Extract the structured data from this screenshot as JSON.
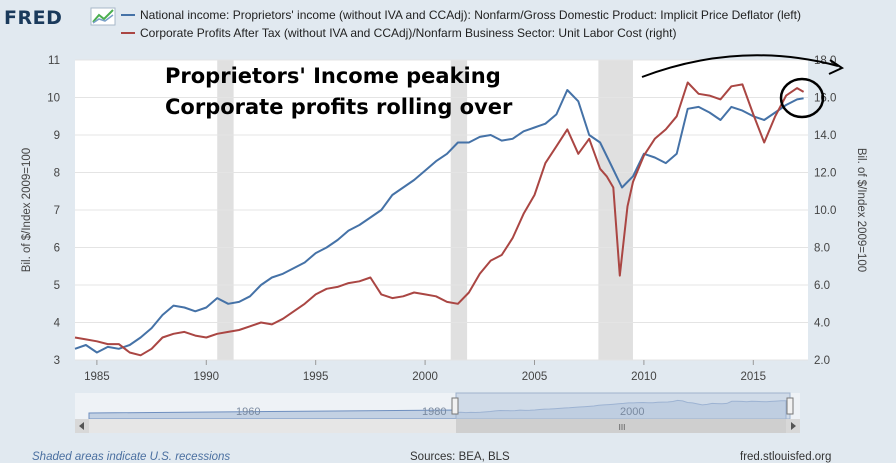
{
  "header": {
    "logo_text": "FRED",
    "logo_icon": "chart-line-icon"
  },
  "legend": {
    "items": [
      {
        "label": "National income: Proprietors' income (without IVA and CCAdj): Nonfarm/Gross Domestic Product: Implicit Price Deflator (left)",
        "color": "#4572a7"
      },
      {
        "label": "Corporate Profits After Tax (without IVA and CCAdj)/Nonfarm Business Sector: Unit Labor Cost (right)",
        "color": "#aa4643"
      }
    ]
  },
  "annotation": {
    "line1": "Proprietors' Income peaking",
    "line2": "Corporate profits rolling over"
  },
  "footer": {
    "recession_note": "Shaded areas indicate U.S. recessions",
    "sources": "Sources: BEA, BLS",
    "site": "fred.stlouisfed.org"
  },
  "navigator": {
    "ticks": [
      "1960",
      "1980",
      "2000"
    ],
    "scrollbar_grip": "III"
  },
  "chart_data": {
    "type": "line",
    "title": "",
    "xlabel": "",
    "xlim": [
      1984.0,
      2017.5
    ],
    "x_ticks": [
      1985,
      1990,
      1995,
      2000,
      2005,
      2010,
      2015
    ],
    "x_tick_labels": [
      "1985",
      "1990",
      "1995",
      "2000",
      "2005",
      "2010",
      "2015"
    ],
    "y_left": {
      "label": "Bil. of $/Index 2009=100",
      "range": [
        3,
        11
      ],
      "ticks": [
        3,
        4,
        5,
        6,
        7,
        8,
        9,
        10,
        11
      ],
      "tick_labels": [
        "3",
        "4",
        "5",
        "6",
        "7",
        "8",
        "9",
        "10",
        "11"
      ]
    },
    "y_right": {
      "label": "Bil. of $/Index 2009=100",
      "range": [
        2.0,
        18.0
      ],
      "ticks": [
        2,
        4,
        6,
        8,
        10,
        12,
        14,
        16,
        18
      ],
      "tick_labels": [
        "2.0",
        "4.0",
        "6.0",
        "8.0",
        "10.0",
        "12.0",
        "14.0",
        "16.0",
        "18.0"
      ]
    },
    "recessions": [
      [
        1990.5,
        1991.25
      ],
      [
        2001.17,
        2001.92
      ],
      [
        2007.92,
        2009.5
      ]
    ],
    "grid": true,
    "series": [
      {
        "name": "National income: Proprietors' income / GDP deflator",
        "axis": "left",
        "color": "#4572a7",
        "x": [
          1984.0,
          1984.5,
          1985.0,
          1985.5,
          1986.0,
          1986.5,
          1987.0,
          1987.5,
          1988.0,
          1988.5,
          1989.0,
          1989.5,
          1990.0,
          1990.5,
          1991.0,
          1991.5,
          1992.0,
          1992.5,
          1993.0,
          1993.5,
          1994.0,
          1994.5,
          1995.0,
          1995.5,
          1996.0,
          1996.5,
          1997.0,
          1997.5,
          1998.0,
          1998.5,
          1999.0,
          1999.5,
          2000.0,
          2000.5,
          2001.0,
          2001.5,
          2002.0,
          2002.5,
          2003.0,
          2003.5,
          2004.0,
          2004.5,
          2005.0,
          2005.5,
          2006.0,
          2006.5,
          2007.0,
          2007.5,
          2008.0,
          2008.5,
          2009.0,
          2009.5,
          2010.0,
          2010.5,
          2011.0,
          2011.5,
          2012.0,
          2012.5,
          2013.0,
          2013.5,
          2014.0,
          2014.5,
          2015.0,
          2015.5,
          2016.0,
          2016.5,
          2017.0,
          2017.3
        ],
        "values": [
          3.3,
          3.4,
          3.2,
          3.35,
          3.3,
          3.4,
          3.6,
          3.85,
          4.2,
          4.45,
          4.4,
          4.3,
          4.4,
          4.65,
          4.5,
          4.55,
          4.7,
          5.0,
          5.2,
          5.3,
          5.45,
          5.6,
          5.85,
          6.0,
          6.2,
          6.45,
          6.6,
          6.8,
          7.0,
          7.4,
          7.6,
          7.8,
          8.05,
          8.3,
          8.5,
          8.8,
          8.8,
          8.95,
          9.0,
          8.85,
          8.9,
          9.1,
          9.2,
          9.3,
          9.55,
          10.2,
          9.9,
          9.0,
          8.8,
          8.2,
          7.6,
          7.9,
          8.5,
          8.4,
          8.25,
          8.5,
          9.7,
          9.75,
          9.6,
          9.4,
          9.75,
          9.65,
          9.5,
          9.4,
          9.6,
          9.8,
          9.95,
          9.98
        ]
      },
      {
        "name": "Corporate Profits After Tax / Unit Labor Cost",
        "axis": "right",
        "color": "#aa4643",
        "x": [
          1984.0,
          1984.5,
          1985.0,
          1985.5,
          1986.0,
          1986.5,
          1987.0,
          1987.5,
          1988.0,
          1988.5,
          1989.0,
          1989.5,
          1990.0,
          1990.5,
          1991.0,
          1991.5,
          1992.0,
          1992.5,
          1993.0,
          1993.5,
          1994.0,
          1994.5,
          1995.0,
          1995.5,
          1996.0,
          1996.5,
          1997.0,
          1997.5,
          1998.0,
          1998.5,
          1999.0,
          1999.5,
          2000.0,
          2000.5,
          2001.0,
          2001.5,
          2002.0,
          2002.5,
          2003.0,
          2003.5,
          2004.0,
          2004.5,
          2005.0,
          2005.5,
          2006.0,
          2006.5,
          2007.0,
          2007.5,
          2008.0,
          2008.3,
          2008.6,
          2008.9,
          2009.25,
          2009.5,
          2010.0,
          2010.5,
          2011.0,
          2011.5,
          2012.0,
          2012.5,
          2013.0,
          2013.5,
          2014.0,
          2014.5,
          2015.0,
          2015.5,
          2016.0,
          2016.5,
          2017.0,
          2017.3
        ],
        "values": [
          3.2,
          3.1,
          3.0,
          2.85,
          2.85,
          2.4,
          2.25,
          2.6,
          3.2,
          3.4,
          3.5,
          3.3,
          3.2,
          3.4,
          3.5,
          3.6,
          3.8,
          4.0,
          3.9,
          4.2,
          4.6,
          5.0,
          5.5,
          5.8,
          5.9,
          6.1,
          6.2,
          6.4,
          5.5,
          5.3,
          5.4,
          5.6,
          5.5,
          5.4,
          5.1,
          5.0,
          5.6,
          6.6,
          7.3,
          7.6,
          8.5,
          9.8,
          10.8,
          12.5,
          13.4,
          14.3,
          13.0,
          13.8,
          12.2,
          11.8,
          11.2,
          6.5,
          10.2,
          11.5,
          12.9,
          13.8,
          14.3,
          15.0,
          16.8,
          16.2,
          16.1,
          15.9,
          16.6,
          16.7,
          15.1,
          13.6,
          15.0,
          16.1,
          16.5,
          16.3
        ]
      }
    ]
  }
}
